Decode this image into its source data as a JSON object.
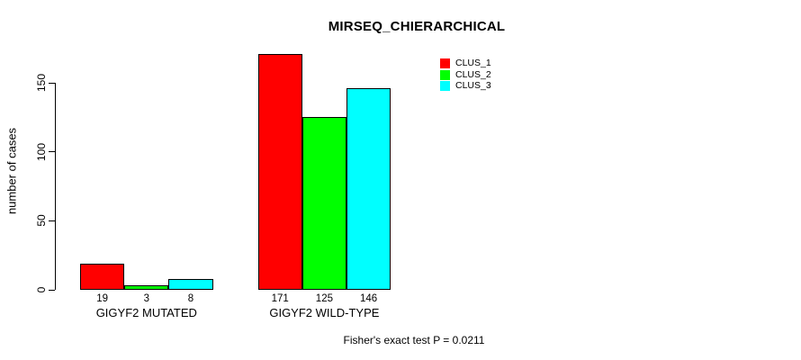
{
  "chart_data": {
    "type": "bar",
    "title": "MIRSEQ_CHIERARCHICAL",
    "ylabel": "number of cases",
    "xlabel": "",
    "categories": [
      "GIGYF2 MUTATED",
      "GIGYF2 WILD-TYPE"
    ],
    "series": [
      {
        "name": "CLUS_1",
        "color": "#FF0000",
        "values": [
          19,
          171
        ]
      },
      {
        "name": "CLUS_2",
        "color": "#00FF00",
        "values": [
          3,
          125
        ]
      },
      {
        "name": "CLUS_3",
        "color": "#00FFFF",
        "values": [
          8,
          146
        ]
      }
    ],
    "ylim": [
      0,
      150
    ],
    "yticks": [
      0,
      50,
      100,
      150
    ],
    "bar_value_labels_shown": true,
    "grid": false,
    "legend_position": "top-right",
    "annotation": "Fisher's exact test P = 0.0211"
  }
}
